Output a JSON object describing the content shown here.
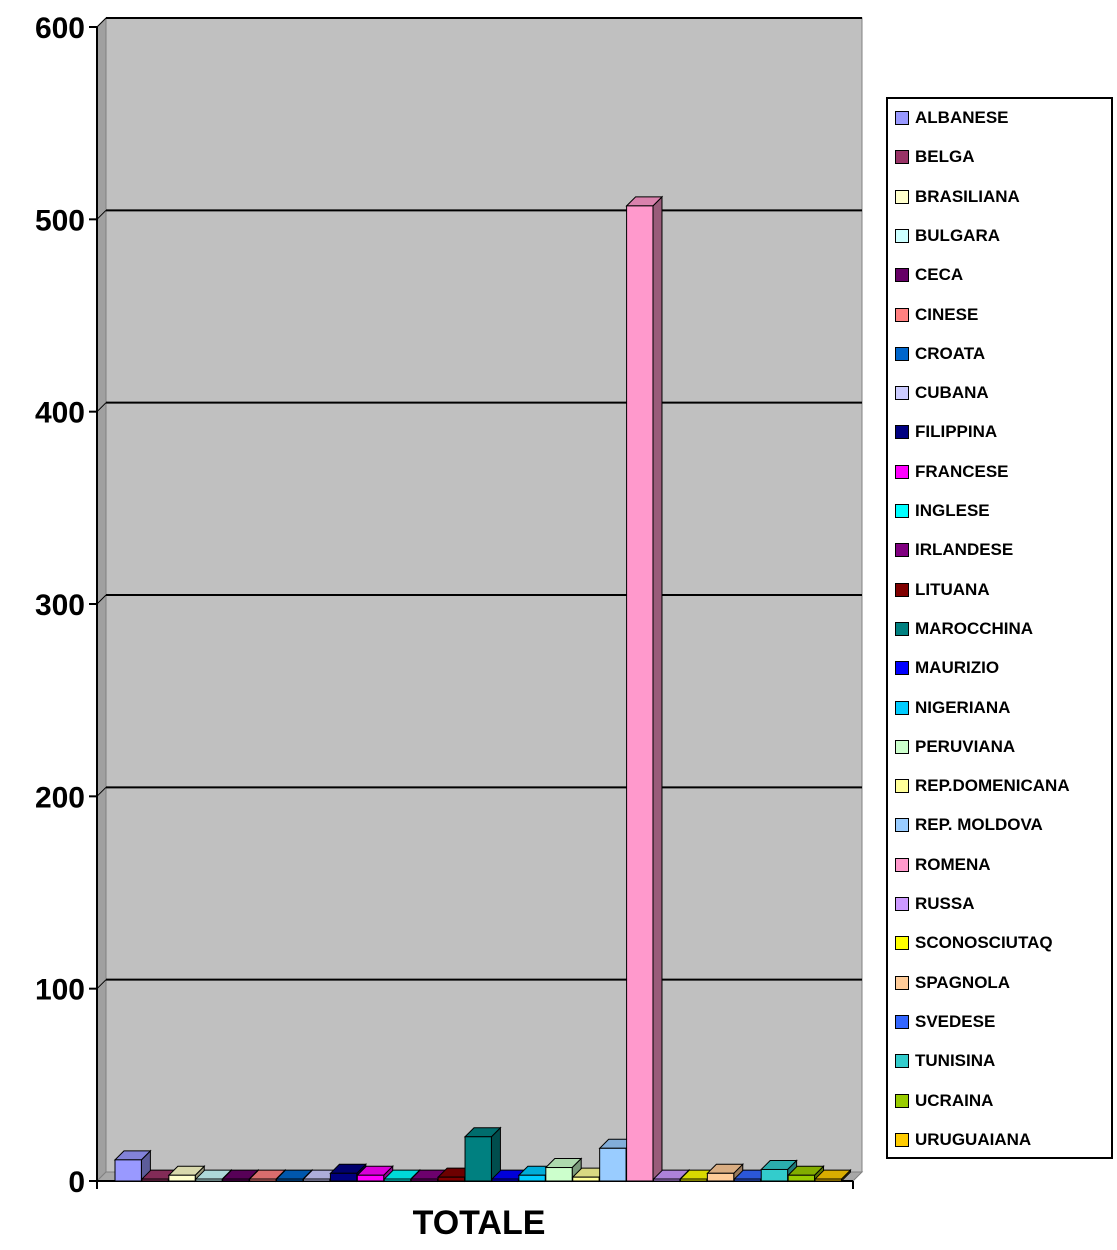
{
  "chart_data": {
    "type": "bar",
    "title": "",
    "xlabel": "",
    "ylabel": "",
    "categories": [
      "TOTALE"
    ],
    "ylim": [
      0,
      600
    ],
    "yticks": [
      0,
      100,
      200,
      300,
      400,
      500,
      600
    ],
    "grid": true,
    "three_d": true,
    "legend_position": "right",
    "series": [
      {
        "name": "ALBANESE",
        "values": [
          11
        ],
        "color": "#9999FF"
      },
      {
        "name": "BELGA",
        "values": [
          1
        ],
        "color": "#993366"
      },
      {
        "name": "BRASILIANA",
        "values": [
          3
        ],
        "color": "#FFFFCC"
      },
      {
        "name": "BULGARA",
        "values": [
          1
        ],
        "color": "#CCFFFF"
      },
      {
        "name": "CECA",
        "values": [
          1
        ],
        "color": "#660066"
      },
      {
        "name": "CINESE",
        "values": [
          1
        ],
        "color": "#FF8080"
      },
      {
        "name": "CROATA",
        "values": [
          1
        ],
        "color": "#0066CC"
      },
      {
        "name": "CUBANA",
        "values": [
          1
        ],
        "color": "#CCCCFF"
      },
      {
        "name": "FILIPPINA",
        "values": [
          4
        ],
        "color": "#000080"
      },
      {
        "name": "FRANCESE",
        "values": [
          3
        ],
        "color": "#FF00FF"
      },
      {
        "name": "INGLESE",
        "values": [
          1
        ],
        "color": "#00FFFF"
      },
      {
        "name": "IRLANDESE",
        "values": [
          1
        ],
        "color": "#800080"
      },
      {
        "name": "LITUANA",
        "values": [
          2
        ],
        "color": "#800000"
      },
      {
        "name": "MAROCCHINA",
        "values": [
          23
        ],
        "color": "#008080"
      },
      {
        "name": "MAURIZIO",
        "values": [
          1
        ],
        "color": "#0000FF"
      },
      {
        "name": "NIGERIANA",
        "values": [
          3
        ],
        "color": "#00CCFF"
      },
      {
        "name": "PERUVIANA",
        "values": [
          7
        ],
        "color": "#CCFFCC"
      },
      {
        "name": "REP.DOMENICANA",
        "values": [
          2
        ],
        "color": "#FFFF99"
      },
      {
        "name": "REP. MOLDOVA",
        "values": [
          17
        ],
        "color": "#99CCFF"
      },
      {
        "name": "ROMENA",
        "values": [
          507
        ],
        "color": "#FF99CC"
      },
      {
        "name": "RUSSA",
        "values": [
          1
        ],
        "color": "#CC99FF"
      },
      {
        "name": "SCONOSCIUTAQ",
        "values": [
          1
        ],
        "color": "#FFFF00"
      },
      {
        "name": "SPAGNOLA",
        "values": [
          4
        ],
        "color": "#FFCC99"
      },
      {
        "name": "SVEDESE",
        "values": [
          1
        ],
        "color": "#3366FF"
      },
      {
        "name": "TUNISINA",
        "values": [
          6
        ],
        "color": "#33CCCC"
      },
      {
        "name": "UCRAINA",
        "values": [
          3
        ],
        "color": "#99CC00"
      },
      {
        "name": "URUGUAIANA",
        "values": [
          1
        ],
        "color": "#FFCC00"
      }
    ]
  },
  "colors": {
    "plot_background": "#C0C0C0",
    "gridline": "#000000"
  }
}
